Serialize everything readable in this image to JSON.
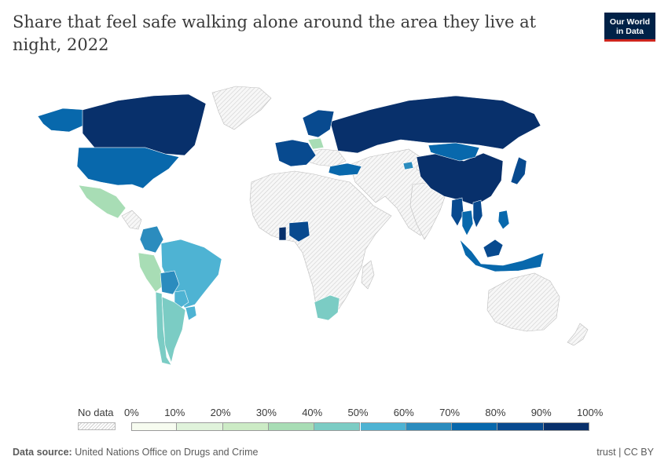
{
  "header": {
    "title": "Share that feel safe walking alone around the area they live at night, 2022"
  },
  "logo": {
    "line1": "Our World",
    "line2": "in Data"
  },
  "legend": {
    "no_data_label": "No data",
    "ticks": [
      "0%",
      "10%",
      "20%",
      "30%",
      "40%",
      "50%",
      "60%",
      "70%",
      "80%",
      "90%",
      "100%"
    ],
    "bins": [
      {
        "from": 0,
        "to": 10,
        "color": "#f7fcf0"
      },
      {
        "from": 10,
        "to": 20,
        "color": "#e0f3db"
      },
      {
        "from": 20,
        "to": 30,
        "color": "#ccebc5"
      },
      {
        "from": 30,
        "to": 40,
        "color": "#a8ddb5"
      },
      {
        "from": 40,
        "to": 50,
        "color": "#7bccc4"
      },
      {
        "from": 50,
        "to": 60,
        "color": "#4eb3d3"
      },
      {
        "from": 60,
        "to": 70,
        "color": "#2b8cbe"
      },
      {
        "from": 70,
        "to": 80,
        "color": "#0868ac"
      },
      {
        "from": 80,
        "to": 90,
        "color": "#084a8f"
      },
      {
        "from": 90,
        "to": 100,
        "color": "#08306b"
      }
    ]
  },
  "footer": {
    "source_label": "Data source:",
    "source_text": "United Nations Office on Drugs and Crime",
    "license": "trust | CC BY"
  },
  "map_colors": {
    "no_data_fill": "#f2f2f2",
    "no_data_hatch": "#cfcfcf",
    "border": "#bdbdbd"
  },
  "regions": [
    {
      "name": "Canada",
      "bin": 9
    },
    {
      "name": "Alaska",
      "bin": 7
    },
    {
      "name": "United States",
      "bin": 7
    },
    {
      "name": "Mexico",
      "bin": 3
    },
    {
      "name": "Colombia",
      "bin": 6
    },
    {
      "name": "Peru",
      "bin": 3
    },
    {
      "name": "Brazil",
      "bin": 5
    },
    {
      "name": "Bolivia",
      "bin": 6
    },
    {
      "name": "Paraguay",
      "bin": 5
    },
    {
      "name": "Uruguay",
      "bin": 5
    },
    {
      "name": "Chile",
      "bin": 4
    },
    {
      "name": "Argentina",
      "bin": 4
    },
    {
      "name": "Russia",
      "bin": 9
    },
    {
      "name": "China",
      "bin": 9
    },
    {
      "name": "Mongolia",
      "bin": 7
    },
    {
      "name": "Japan",
      "bin": 8
    },
    {
      "name": "Nordic countries",
      "bin": 8
    },
    {
      "name": "Western Europe",
      "bin": 8
    },
    {
      "name": "Turkey",
      "bin": 7
    },
    {
      "name": "Poland",
      "bin": 3
    },
    {
      "name": "Myanmar",
      "bin": 8
    },
    {
      "name": "Thailand",
      "bin": 7
    },
    {
      "name": "Vietnam",
      "bin": 8
    },
    {
      "name": "Malaysia",
      "bin": 8
    },
    {
      "name": "Indonesia",
      "bin": 7
    },
    {
      "name": "Philippines",
      "bin": 7
    },
    {
      "name": "Nigeria",
      "bin": 8
    },
    {
      "name": "Ghana",
      "bin": 9
    },
    {
      "name": "South Africa",
      "bin": 4
    },
    {
      "name": "Tajikistan",
      "bin": 6
    }
  ]
}
